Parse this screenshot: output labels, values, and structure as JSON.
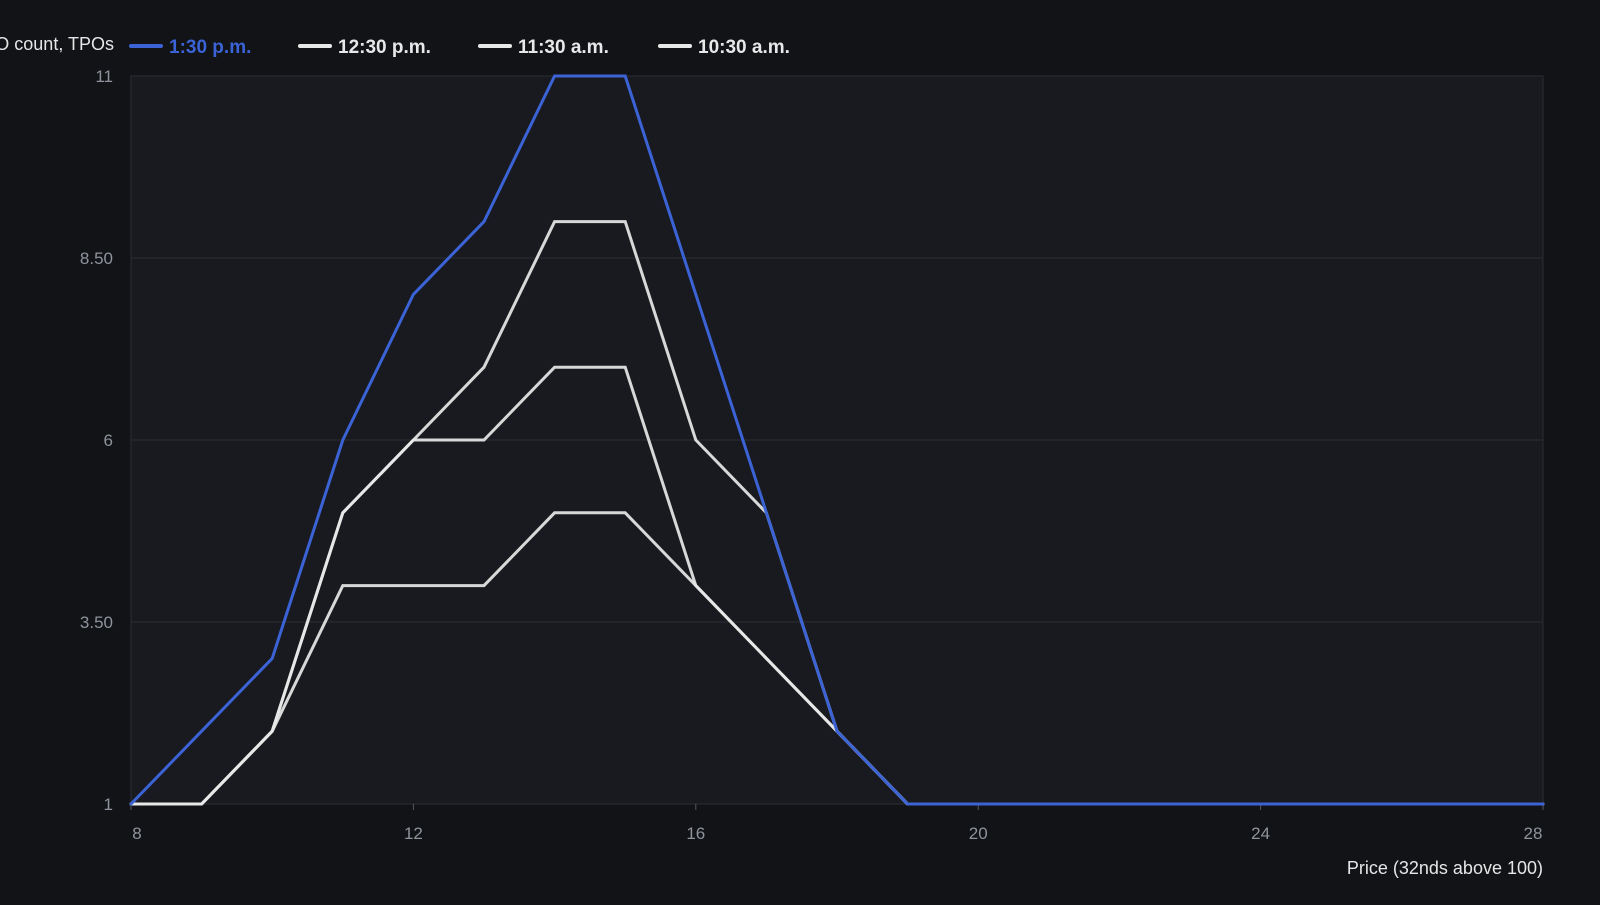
{
  "chart_data": {
    "type": "line",
    "ylabel": "TPO count, TPOs",
    "xlabel": "Price (32nds above 100)",
    "x": [
      8,
      9,
      10,
      11,
      12,
      13,
      14,
      15,
      16,
      17,
      18,
      19,
      20,
      21,
      22,
      23,
      24,
      25,
      26,
      27,
      28
    ],
    "xlim": [
      8,
      28
    ],
    "ylim": [
      1,
      11
    ],
    "x_ticks": [
      "8",
      "12",
      "16",
      "20",
      "24",
      "28"
    ],
    "x_tick_values": [
      8,
      12,
      16,
      20,
      24,
      28
    ],
    "y_ticks": [
      "1",
      "3.50",
      "6",
      "8.50",
      "11"
    ],
    "y_tick_values": [
      1,
      3.5,
      6,
      8.5,
      11
    ],
    "grid": true,
    "legend_position": "top-left",
    "series": [
      {
        "name": "10:30 a.m.",
        "color": "#e8e8e8",
        "values": [
          1,
          1,
          2,
          4,
          4,
          4,
          5,
          5,
          4,
          3,
          2,
          1,
          1,
          1,
          1,
          1,
          1,
          1,
          1,
          1,
          1
        ]
      },
      {
        "name": "11:30 a.m.",
        "color": "#e8e8e8",
        "values": [
          1,
          1,
          2,
          5,
          6,
          6,
          7,
          7,
          4,
          3,
          2,
          1,
          1,
          1,
          1,
          1,
          1,
          1,
          1,
          1,
          1
        ]
      },
      {
        "name": "12:30 p.m.",
        "color": "#e8e8e8",
        "values": [
          1,
          1,
          2,
          5,
          6,
          7,
          9,
          9,
          6,
          5,
          2,
          1,
          1,
          1,
          1,
          1,
          1,
          1,
          1,
          1,
          1
        ]
      },
      {
        "name": "1:30 p.m.",
        "color": "#3b63d6",
        "values": [
          1,
          2,
          3,
          6,
          8,
          9,
          11,
          11,
          8,
          5,
          2,
          1,
          1,
          1,
          1,
          1,
          1,
          1,
          1,
          1,
          1
        ]
      }
    ],
    "legend_order": [
      "1:30 p.m.",
      "12:30 p.m.",
      "11:30 a.m.",
      "10:30 a.m."
    ]
  }
}
